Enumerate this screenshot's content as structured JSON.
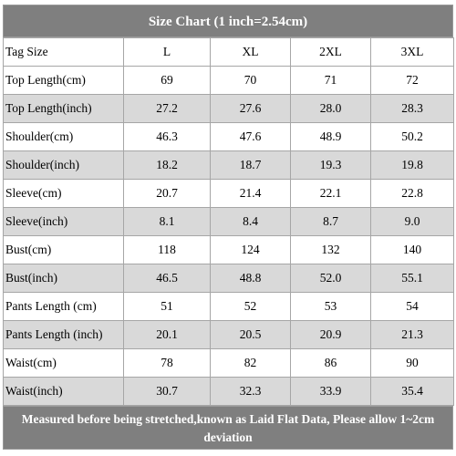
{
  "title": "Size Chart (1 inch=2.54cm)",
  "table": {
    "header": [
      "Tag Size",
      "L",
      "XL",
      "2XL",
      "3XL"
    ],
    "rows": [
      [
        "Top Length(cm)",
        "69",
        "70",
        "71",
        "72"
      ],
      [
        "Top Length(inch)",
        "27.2",
        "27.6",
        "28.0",
        "28.3"
      ],
      [
        "Shoulder(cm)",
        "46.3",
        "47.6",
        "48.9",
        "50.2"
      ],
      [
        "Shoulder(inch)",
        "18.2",
        "18.7",
        "19.3",
        "19.8"
      ],
      [
        "Sleeve(cm)",
        "20.7",
        "21.4",
        "22.1",
        "22.8"
      ],
      [
        "Sleeve(inch)",
        "8.1",
        "8.4",
        "8.7",
        "9.0"
      ],
      [
        "Bust(cm)",
        "118",
        "124",
        "132",
        "140"
      ],
      [
        "Bust(inch)",
        "46.5",
        "48.8",
        "52.0",
        "55.1"
      ],
      [
        "Pants Length  (cm)",
        "51",
        "52",
        "53",
        "54"
      ],
      [
        "Pants Length  (inch)",
        "20.1",
        "20.5",
        "20.9",
        "21.3"
      ],
      [
        "Waist(cm)",
        "78",
        "82",
        "86",
        "90"
      ],
      [
        "Waist(inch)",
        "30.7",
        "32.3",
        "33.9",
        "35.4"
      ]
    ]
  },
  "footer": "Measured before being stretched,known as Laid Flat Data, Please allow 1~2cm deviation"
}
